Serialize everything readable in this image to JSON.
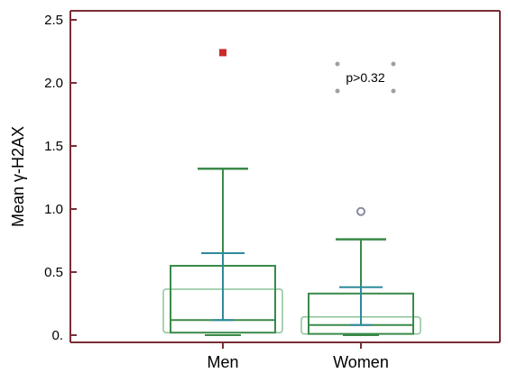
{
  "chart_data": {
    "type": "box",
    "title": "",
    "xlabel": "",
    "ylabel": "Mean γ-H2AX",
    "ylim": [
      0,
      2.5
    ],
    "y_ticks": [
      {
        "value": 0,
        "label": "0."
      },
      {
        "value": 0.5,
        "label": "0.5"
      },
      {
        "value": 1.0,
        "label": "1.0"
      },
      {
        "value": 1.5,
        "label": "1.5"
      },
      {
        "value": 2.0,
        "label": "2.0"
      },
      {
        "value": 2.5,
        "label": "2.5"
      }
    ],
    "categories": [
      "Men",
      "Women"
    ],
    "boxes": [
      {
        "name": "Men",
        "whisker_low": 0.0,
        "q1": 0.02,
        "median": 0.12,
        "q3": 0.55,
        "whisker_high": 1.32,
        "mean": 0.12,
        "mean_plus_sd": 0.65,
        "outliers": [
          2.24
        ]
      },
      {
        "name": "Women",
        "whisker_low": 0.0,
        "q1": 0.01,
        "median": 0.08,
        "q3": 0.33,
        "whisker_high": 0.76,
        "mean": 0.08,
        "mean_plus_sd": 0.38,
        "outliers": [
          0.98
        ]
      }
    ],
    "annotation": "p>0.32",
    "grid": false,
    "colors": {
      "axis": "#7a2e36",
      "box": "#3a8a4a",
      "box_light": "#8cc49a",
      "mean": "#2e8a9a",
      "outlier_men": "#cc2a2a",
      "outlier_women": "#8a8aa6",
      "handle": "#a0a0a0"
    }
  }
}
